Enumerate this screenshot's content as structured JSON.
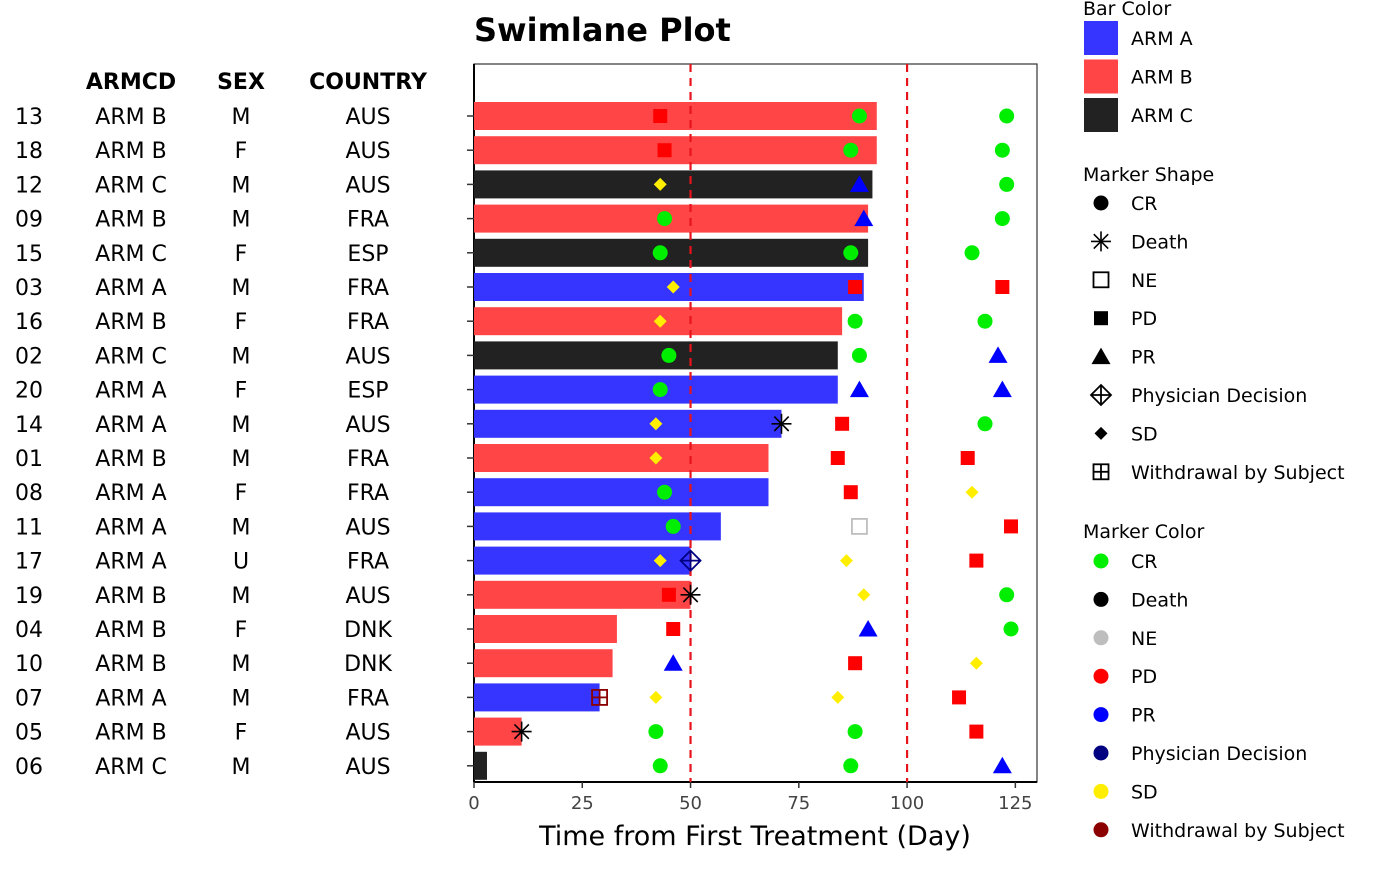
{
  "chart_data": {
    "type": "swimlane",
    "title": "Swimlane Plot",
    "xlabel": "Time from First Treatment (Day)",
    "xlim": [
      0,
      130
    ],
    "x_ticks": [
      0,
      25,
      50,
      75,
      100,
      125
    ],
    "reference_lines": [
      50,
      100
    ],
    "reference_line_color": "#e8141b",
    "table_columns": [
      "ARMCD",
      "SEX",
      "COUNTRY"
    ],
    "subjects": [
      {
        "id": "13",
        "armcd": "ARM B",
        "sex": "M",
        "country": "AUS",
        "duration": 93
      },
      {
        "id": "18",
        "armcd": "ARM B",
        "sex": "F",
        "country": "AUS",
        "duration": 93
      },
      {
        "id": "12",
        "armcd": "ARM C",
        "sex": "M",
        "country": "AUS",
        "duration": 92
      },
      {
        "id": "09",
        "armcd": "ARM B",
        "sex": "M",
        "country": "FRA",
        "duration": 91
      },
      {
        "id": "15",
        "armcd": "ARM C",
        "sex": "F",
        "country": "ESP",
        "duration": 91
      },
      {
        "id": "03",
        "armcd": "ARM A",
        "sex": "M",
        "country": "FRA",
        "duration": 90
      },
      {
        "id": "16",
        "armcd": "ARM B",
        "sex": "F",
        "country": "FRA",
        "duration": 85
      },
      {
        "id": "02",
        "armcd": "ARM C",
        "sex": "M",
        "country": "AUS",
        "duration": 84
      },
      {
        "id": "20",
        "armcd": "ARM A",
        "sex": "F",
        "country": "ESP",
        "duration": 84
      },
      {
        "id": "14",
        "armcd": "ARM A",
        "sex": "M",
        "country": "AUS",
        "duration": 71
      },
      {
        "id": "01",
        "armcd": "ARM B",
        "sex": "M",
        "country": "FRA",
        "duration": 68
      },
      {
        "id": "08",
        "armcd": "ARM A",
        "sex": "F",
        "country": "FRA",
        "duration": 68
      },
      {
        "id": "11",
        "armcd": "ARM A",
        "sex": "M",
        "country": "AUS",
        "duration": 57
      },
      {
        "id": "17",
        "armcd": "ARM A",
        "sex": "U",
        "country": "FRA",
        "duration": 50
      },
      {
        "id": "19",
        "armcd": "ARM B",
        "sex": "M",
        "country": "AUS",
        "duration": 50
      },
      {
        "id": "04",
        "armcd": "ARM B",
        "sex": "F",
        "country": "DNK",
        "duration": 33
      },
      {
        "id": "10",
        "armcd": "ARM B",
        "sex": "M",
        "country": "DNK",
        "duration": 32
      },
      {
        "id": "07",
        "armcd": "ARM A",
        "sex": "M",
        "country": "FRA",
        "duration": 29
      },
      {
        "id": "05",
        "armcd": "ARM B",
        "sex": "F",
        "country": "AUS",
        "duration": 11
      },
      {
        "id": "06",
        "armcd": "ARM C",
        "sex": "M",
        "country": "AUS",
        "duration": 3
      }
    ],
    "markers": [
      {
        "subject": "13",
        "day": 43,
        "type": "PD"
      },
      {
        "subject": "13",
        "day": 89,
        "type": "CR"
      },
      {
        "subject": "13",
        "day": 123,
        "type": "CR"
      },
      {
        "subject": "18",
        "day": 44,
        "type": "PD"
      },
      {
        "subject": "18",
        "day": 87,
        "type": "CR"
      },
      {
        "subject": "18",
        "day": 122,
        "type": "CR"
      },
      {
        "subject": "12",
        "day": 43,
        "type": "SD"
      },
      {
        "subject": "12",
        "day": 89,
        "type": "PR"
      },
      {
        "subject": "12",
        "day": 123,
        "type": "CR"
      },
      {
        "subject": "09",
        "day": 44,
        "type": "CR"
      },
      {
        "subject": "09",
        "day": 90,
        "type": "PR"
      },
      {
        "subject": "09",
        "day": 122,
        "type": "CR"
      },
      {
        "subject": "15",
        "day": 43,
        "type": "CR"
      },
      {
        "subject": "15",
        "day": 87,
        "type": "CR"
      },
      {
        "subject": "15",
        "day": 115,
        "type": "CR"
      },
      {
        "subject": "03",
        "day": 46,
        "type": "SD"
      },
      {
        "subject": "03",
        "day": 88,
        "type": "PD"
      },
      {
        "subject": "03",
        "day": 122,
        "type": "PD"
      },
      {
        "subject": "16",
        "day": 43,
        "type": "SD"
      },
      {
        "subject": "16",
        "day": 88,
        "type": "CR"
      },
      {
        "subject": "16",
        "day": 118,
        "type": "CR"
      },
      {
        "subject": "02",
        "day": 45,
        "type": "CR"
      },
      {
        "subject": "02",
        "day": 89,
        "type": "CR"
      },
      {
        "subject": "02",
        "day": 121,
        "type": "PR"
      },
      {
        "subject": "20",
        "day": 43,
        "type": "CR"
      },
      {
        "subject": "20",
        "day": 89,
        "type": "PR"
      },
      {
        "subject": "20",
        "day": 122,
        "type": "PR"
      },
      {
        "subject": "14",
        "day": 42,
        "type": "SD"
      },
      {
        "subject": "14",
        "day": 71,
        "type": "Death"
      },
      {
        "subject": "14",
        "day": 85,
        "type": "PD"
      },
      {
        "subject": "14",
        "day": 118,
        "type": "CR"
      },
      {
        "subject": "01",
        "day": 42,
        "type": "SD"
      },
      {
        "subject": "01",
        "day": 84,
        "type": "PD"
      },
      {
        "subject": "01",
        "day": 114,
        "type": "PD"
      },
      {
        "subject": "08",
        "day": 44,
        "type": "CR"
      },
      {
        "subject": "08",
        "day": 87,
        "type": "PD"
      },
      {
        "subject": "08",
        "day": 115,
        "type": "SD"
      },
      {
        "subject": "11",
        "day": 46,
        "type": "CR"
      },
      {
        "subject": "11",
        "day": 89,
        "type": "NE"
      },
      {
        "subject": "11",
        "day": 124,
        "type": "PD"
      },
      {
        "subject": "17",
        "day": 43,
        "type": "SD"
      },
      {
        "subject": "17",
        "day": 50,
        "type": "Physician Decision"
      },
      {
        "subject": "17",
        "day": 86,
        "type": "SD"
      },
      {
        "subject": "17",
        "day": 116,
        "type": "PD"
      },
      {
        "subject": "19",
        "day": 45,
        "type": "PD"
      },
      {
        "subject": "19",
        "day": 50,
        "type": "Death"
      },
      {
        "subject": "19",
        "day": 90,
        "type": "SD"
      },
      {
        "subject": "19",
        "day": 123,
        "type": "CR"
      },
      {
        "subject": "04",
        "day": 46,
        "type": "PD"
      },
      {
        "subject": "04",
        "day": 91,
        "type": "PR"
      },
      {
        "subject": "04",
        "day": 124,
        "type": "CR"
      },
      {
        "subject": "10",
        "day": 46,
        "type": "PR"
      },
      {
        "subject": "10",
        "day": 88,
        "type": "PD"
      },
      {
        "subject": "10",
        "day": 116,
        "type": "SD"
      },
      {
        "subject": "07",
        "day": 29,
        "type": "Withdrawal by Subject"
      },
      {
        "subject": "07",
        "day": 42,
        "type": "SD"
      },
      {
        "subject": "07",
        "day": 84,
        "type": "SD"
      },
      {
        "subject": "07",
        "day": 112,
        "type": "PD"
      },
      {
        "subject": "05",
        "day": 11,
        "type": "Death"
      },
      {
        "subject": "05",
        "day": 42,
        "type": "CR"
      },
      {
        "subject": "05",
        "day": 88,
        "type": "CR"
      },
      {
        "subject": "05",
        "day": 116,
        "type": "PD"
      },
      {
        "subject": "06",
        "day": 43,
        "type": "CR"
      },
      {
        "subject": "06",
        "day": 87,
        "type": "CR"
      },
      {
        "subject": "06",
        "day": 122,
        "type": "PR"
      }
    ],
    "legend_placement": "right",
    "legend": {
      "bar_color": {
        "title": "Bar Color",
        "items": [
          {
            "label": "ARM A",
            "color": "#3535ff"
          },
          {
            "label": "ARM B",
            "color": "#ff4545"
          },
          {
            "label": "ARM C",
            "color": "#222222"
          }
        ]
      },
      "marker_shape": {
        "title": "Marker Shape",
        "items": [
          {
            "label": "CR",
            "shape": "circle"
          },
          {
            "label": "Death",
            "shape": "asterisk"
          },
          {
            "label": "NE",
            "shape": "open-square"
          },
          {
            "label": "PD",
            "shape": "square"
          },
          {
            "label": "PR",
            "shape": "triangle"
          },
          {
            "label": "Physician Decision",
            "shape": "diamond-plus"
          },
          {
            "label": "SD",
            "shape": "diamond"
          },
          {
            "label": "Withdrawal by Subject",
            "shape": "square-plus"
          }
        ]
      },
      "marker_color": {
        "title": "Marker Color",
        "items": [
          {
            "label": "CR",
            "color": "#00ee00"
          },
          {
            "label": "Death",
            "color": "#000000"
          },
          {
            "label": "NE",
            "color": "#bebebe"
          },
          {
            "label": "PD",
            "color": "#ff0000"
          },
          {
            "label": "PR",
            "color": "#0000ff"
          },
          {
            "label": "Physician Decision",
            "color": "#000080"
          },
          {
            "label": "SD",
            "color": "#ffee00"
          },
          {
            "label": "Withdrawal by Subject",
            "color": "#8b0000"
          }
        ]
      }
    }
  }
}
